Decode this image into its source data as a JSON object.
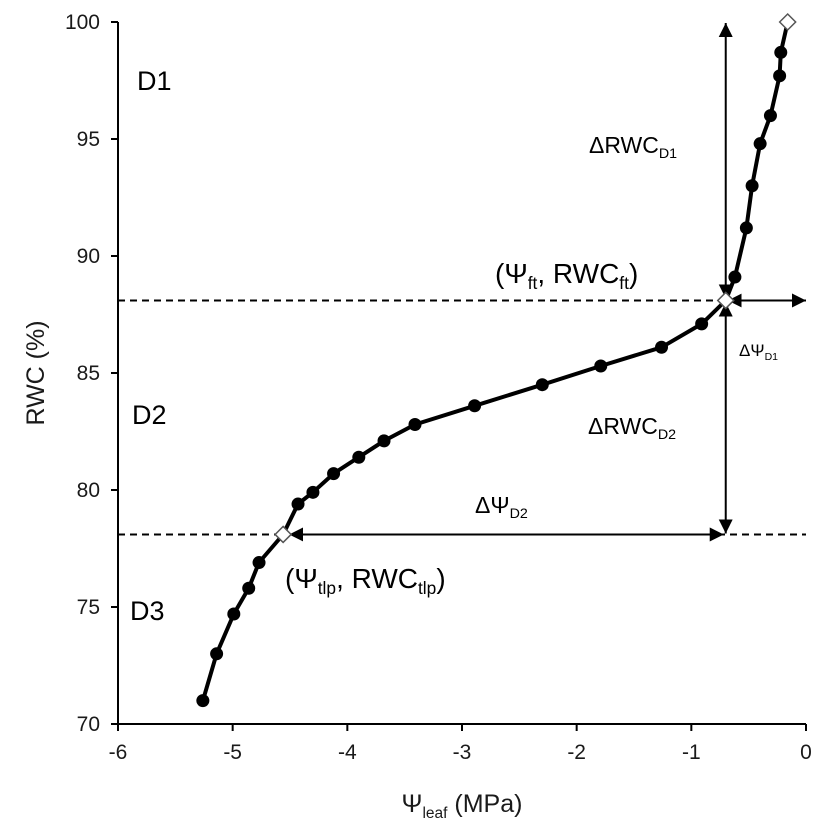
{
  "chart_data": {
    "type": "line",
    "title": "",
    "xlabel": {
      "main": "Ψ",
      "sub": "leaf",
      "unit": " (MPa)"
    },
    "ylabel": "RWC (%)",
    "xlim": [
      -6,
      0
    ],
    "ylim": [
      70,
      100
    ],
    "xticks": [
      -6,
      -5,
      -4,
      -3,
      -2,
      -1,
      0
    ],
    "yticks": [
      70,
      75,
      80,
      85,
      90,
      95,
      100
    ],
    "grid": false,
    "legend": "none",
    "series": [
      {
        "points": [
          [
            -5.26,
            71.0
          ],
          [
            -5.14,
            73.0
          ],
          [
            -4.99,
            74.7
          ],
          [
            -4.86,
            75.8
          ],
          [
            -4.77,
            76.9
          ],
          [
            -4.43,
            79.4
          ],
          [
            -4.3,
            79.9
          ],
          [
            -4.12,
            80.7
          ],
          [
            -3.9,
            81.4
          ],
          [
            -3.68,
            82.1
          ],
          [
            -3.41,
            82.8
          ],
          [
            -2.89,
            83.6
          ],
          [
            -2.3,
            84.5
          ],
          [
            -1.79,
            85.3
          ],
          [
            -1.26,
            86.1
          ],
          [
            -0.91,
            87.1
          ],
          [
            -0.62,
            89.1
          ],
          [
            -0.52,
            91.2
          ],
          [
            -0.47,
            93.0
          ],
          [
            -0.4,
            94.8
          ],
          [
            -0.31,
            96.0
          ],
          [
            -0.23,
            97.7
          ],
          [
            -0.22,
            98.7
          ]
        ]
      }
    ],
    "landmarks": [
      {
        "id": "turgor-loss-point",
        "x": -4.56,
        "y": 78.1
      },
      {
        "id": "full-turgor-point",
        "x": -0.7,
        "y": 88.1
      },
      {
        "id": "saturation-point",
        "x": -0.16,
        "y": 100.0
      }
    ],
    "reference_lines": {
      "ft_y": 88.1,
      "tlp_y": 78.1
    },
    "annotations": {
      "region_d1": "D1",
      "region_d2": "D2",
      "region_d3": "D3",
      "ft_point": {
        "open": "(Ψ",
        "sub1": "ft",
        "mid": ", RWC",
        "sub2": "ft",
        "close": ")"
      },
      "tlp_point": {
        "open": "(Ψ",
        "sub1": "tlp",
        "mid": ", RWC",
        "sub2": "tlp",
        "close": ")"
      },
      "delta_rwc_d1": {
        "main": "ΔRWC",
        "sub": "D1"
      },
      "delta_rwc_d2": {
        "main": "ΔRWC",
        "sub": "D2"
      },
      "delta_psi_d1": {
        "main": "ΔΨ",
        "sub": "D1"
      },
      "delta_psi_d2": {
        "main": "ΔΨ",
        "sub": "D2"
      }
    },
    "colors": {
      "line": "#000000",
      "marker_fill": "#000000",
      "landmark_fill": "#ffffff",
      "axis": "#000000"
    }
  }
}
